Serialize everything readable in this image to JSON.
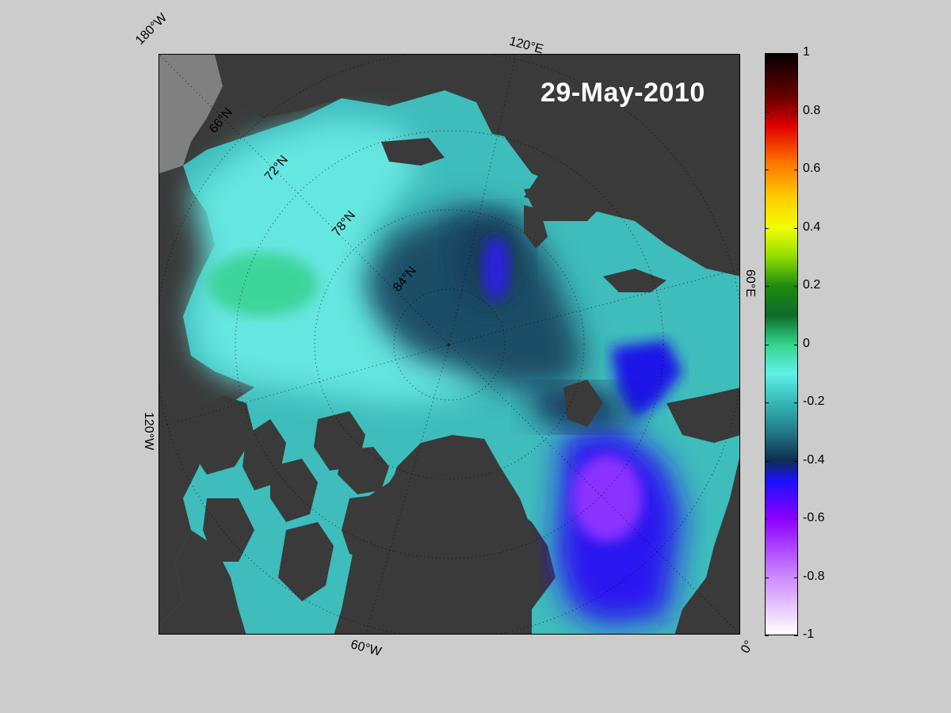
{
  "map": {
    "date": "29-May-2010",
    "projection": "polar stereographic (north pole)",
    "longitude_labels": [
      "180°W",
      "120°E",
      "60°E",
      "0°",
      "60°W",
      "120°W"
    ],
    "latitude_labels": [
      "66°N",
      "72°N",
      "78°N",
      "84°N"
    ],
    "land_color": "#3a3a3a",
    "coast_mask_color": "#808080"
  },
  "colorbar": {
    "min": -1,
    "max": 1,
    "tick_labels": [
      "1",
      "0.8",
      "0.6",
      "0.4",
      "0.2",
      "0",
      "-0.2",
      "-0.4",
      "-0.6",
      "-0.8",
      "-1"
    ],
    "colors": [
      {
        "v": 1.0,
        "c": "#050000"
      },
      {
        "v": 0.85,
        "c": "#6a0000"
      },
      {
        "v": 0.75,
        "c": "#e00000"
      },
      {
        "v": 0.62,
        "c": "#ff7a00"
      },
      {
        "v": 0.5,
        "c": "#ffd000"
      },
      {
        "v": 0.4,
        "c": "#f0ff00"
      },
      {
        "v": 0.3,
        "c": "#8fdb00"
      },
      {
        "v": 0.2,
        "c": "#1f8a10"
      },
      {
        "v": 0.1,
        "c": "#0f6a2a"
      },
      {
        "v": 0.0,
        "c": "#33d48a"
      },
      {
        "v": -0.1,
        "c": "#5ff0e8"
      },
      {
        "v": -0.2,
        "c": "#36b8b8"
      },
      {
        "v": -0.3,
        "c": "#227a88"
      },
      {
        "v": -0.4,
        "c": "#0e2e50"
      },
      {
        "v": -0.47,
        "c": "#1a10ff"
      },
      {
        "v": -0.6,
        "c": "#8a00ff"
      },
      {
        "v": -0.8,
        "c": "#cc88ff"
      },
      {
        "v": -1.0,
        "c": "#ffffff"
      }
    ]
  }
}
